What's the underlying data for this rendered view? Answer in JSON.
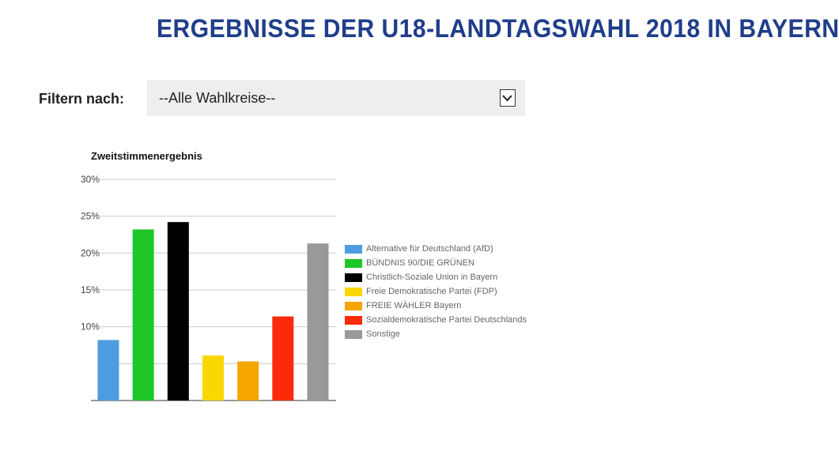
{
  "header": {
    "title": "ERGEBNISSE DER U18-LANDTAGSWAHL 2018 IN BAYERN"
  },
  "filter": {
    "label": "Filtern nach:",
    "selected": "--Alle Wahlkreise--"
  },
  "colors": {
    "title": "#1f3d8a",
    "select_bg": "#efeeec"
  },
  "chart_data": {
    "type": "bar",
    "title": "Zweitstimmenergebnis",
    "xlabel": "",
    "ylabel": "",
    "ylim": [
      0,
      30
    ],
    "yticks": [
      5,
      10,
      15,
      20,
      25,
      30
    ],
    "ytick_labels": [
      "",
      "10%",
      "15%",
      "20%",
      "25%",
      "30%"
    ],
    "grid": true,
    "legend_position": "right",
    "series": [
      {
        "name": "Alternative für Deutschland (AfD)",
        "value": 8.2,
        "color": "#4d9de0"
      },
      {
        "name": "BÜNDNIS 90/DIE GRÜNEN",
        "value": 23.2,
        "color": "#1ec627"
      },
      {
        "name": "Christlich-Soziale Union in Bayern",
        "value": 24.2,
        "color": "#000000"
      },
      {
        "name": "Freie Demokratische Partei (FDP)",
        "value": 6.1,
        "color": "#fbd700"
      },
      {
        "name": "FREIE WÄHLER Bayern",
        "value": 5.3,
        "color": "#f5a500"
      },
      {
        "name": "Sozialdemokratische Partei Deutschlands",
        "value": 11.4,
        "color": "#fa2a0a"
      },
      {
        "name": "Sonstige",
        "value": 21.3,
        "color": "#999999"
      }
    ]
  }
}
